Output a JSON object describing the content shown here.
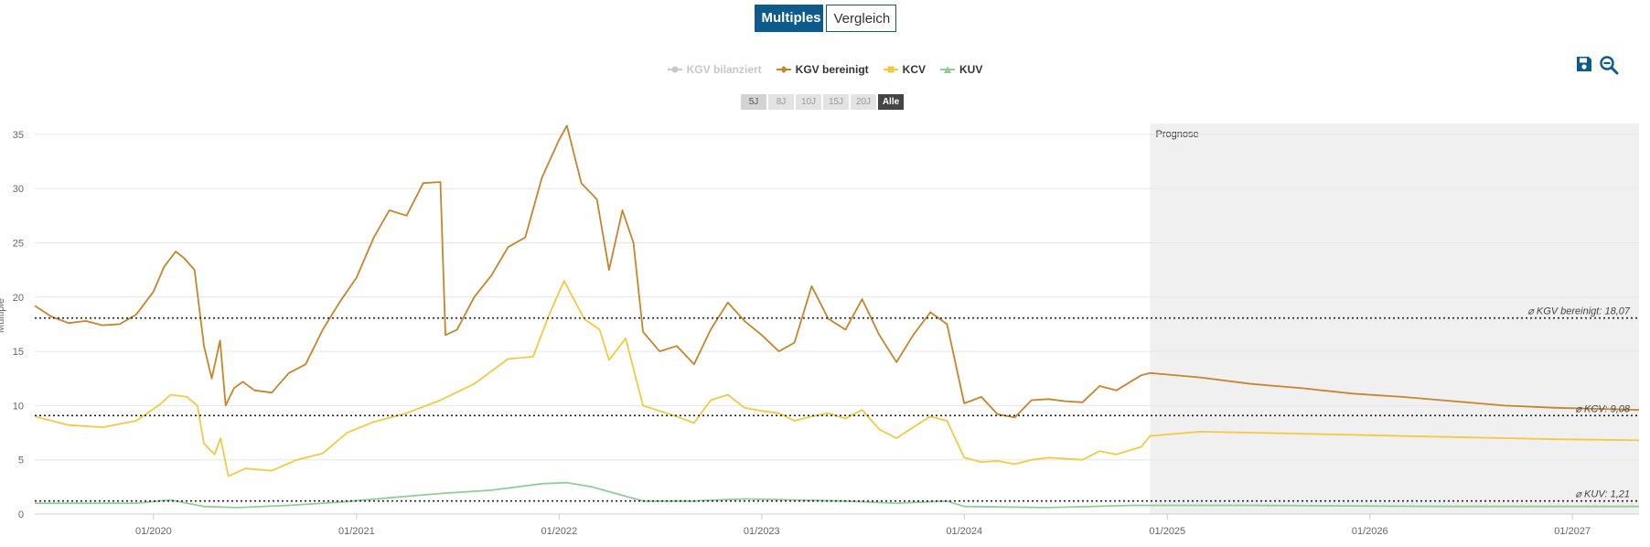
{
  "tabs": [
    {
      "label": "Multiples",
      "active": true
    },
    {
      "label": "Vergleich",
      "active": false
    }
  ],
  "legend": [
    {
      "label": "KGV bilanziert",
      "color": "#c8c8c8",
      "visible": false
    },
    {
      "label": "KGV bereinigt",
      "color": "#c8842a",
      "visible": true
    },
    {
      "label": "KCV",
      "color": "#f5c842",
      "visible": true
    },
    {
      "label": "KUV",
      "color": "#8fcf95",
      "visible": true
    }
  ],
  "ranges": [
    {
      "label": "5J"
    },
    {
      "label": "8J"
    },
    {
      "label": "10J"
    },
    {
      "label": "15J"
    },
    {
      "label": "20J"
    },
    {
      "label": "Alle",
      "selected": true
    }
  ],
  "tools": {
    "save_icon": "save-icon",
    "zoom_out_icon": "zoom-out-icon",
    "accent": "#0d5a8c"
  },
  "chart_data": {
    "type": "line",
    "ylabel": "Multiple",
    "ylim": [
      0,
      36
    ],
    "yticks": [
      0,
      5,
      10,
      15,
      20,
      25,
      30,
      35
    ],
    "xlim": [
      "2019-06-01",
      "2027-05-01"
    ],
    "xticks": [
      {
        "date": "2020-01-01",
        "label": "01/2020"
      },
      {
        "date": "2021-01-01",
        "label": "01/2021"
      },
      {
        "date": "2022-01-01",
        "label": "01/2022"
      },
      {
        "date": "2023-01-01",
        "label": "01/2023"
      },
      {
        "date": "2024-01-01",
        "label": "01/2024"
      },
      {
        "date": "2025-01-01",
        "label": "01/2025"
      },
      {
        "date": "2026-01-01",
        "label": "01/2026"
      },
      {
        "date": "2027-01-01",
        "label": "01/2027"
      }
    ],
    "forecast": {
      "label": "Prognose",
      "start": "2024-12-01"
    },
    "averages": [
      {
        "label": "⌀ KGV bereinigt: 18,07",
        "value": 18.07
      },
      {
        "label": "⌀ KCV: 9,08",
        "value": 9.08
      },
      {
        "label": "⌀ KUV: 1,21",
        "value": 1.21
      }
    ],
    "series": [
      {
        "name": "KGV bereinigt",
        "color": "#c8842a",
        "points": [
          [
            "2019-06-01",
            19.2
          ],
          [
            "2019-07-01",
            18.2
          ],
          [
            "2019-08-01",
            17.6
          ],
          [
            "2019-09-01",
            17.8
          ],
          [
            "2019-10-01",
            17.4
          ],
          [
            "2019-11-01",
            17.5
          ],
          [
            "2019-12-01",
            18.4
          ],
          [
            "2020-01-01",
            20.5
          ],
          [
            "2020-01-20",
            22.8
          ],
          [
            "2020-02-10",
            24.2
          ],
          [
            "2020-02-25",
            23.6
          ],
          [
            "2020-03-15",
            22.5
          ],
          [
            "2020-04-01",
            15.5
          ],
          [
            "2020-04-15",
            12.5
          ],
          [
            "2020-04-30",
            16.0
          ],
          [
            "2020-05-10",
            10.0
          ],
          [
            "2020-05-25",
            11.6
          ],
          [
            "2020-06-10",
            12.2
          ],
          [
            "2020-07-01",
            11.4
          ],
          [
            "2020-08-01",
            11.2
          ],
          [
            "2020-09-01",
            13.0
          ],
          [
            "2020-10-01",
            13.8
          ],
          [
            "2020-11-01",
            17.0
          ],
          [
            "2020-12-01",
            19.5
          ],
          [
            "2021-01-01",
            21.8
          ],
          [
            "2021-02-01",
            25.5
          ],
          [
            "2021-03-01",
            28.0
          ],
          [
            "2021-04-01",
            27.5
          ],
          [
            "2021-05-01",
            30.5
          ],
          [
            "2021-06-01",
            30.6
          ],
          [
            "2021-06-10",
            16.5
          ],
          [
            "2021-07-01",
            17.0
          ],
          [
            "2021-08-01",
            20.0
          ],
          [
            "2021-09-01",
            22.0
          ],
          [
            "2021-10-01",
            24.6
          ],
          [
            "2021-11-01",
            25.5
          ],
          [
            "2021-12-01",
            31.0
          ],
          [
            "2022-01-01",
            34.5
          ],
          [
            "2022-01-15",
            35.8
          ],
          [
            "2022-02-10",
            30.5
          ],
          [
            "2022-03-10",
            29.0
          ],
          [
            "2022-04-01",
            22.5
          ],
          [
            "2022-04-25",
            28.0
          ],
          [
            "2022-05-15",
            25.0
          ],
          [
            "2022-06-01",
            16.8
          ],
          [
            "2022-07-01",
            15.0
          ],
          [
            "2022-08-01",
            15.5
          ],
          [
            "2022-09-01",
            13.8
          ],
          [
            "2022-10-01",
            17.0
          ],
          [
            "2022-11-01",
            19.5
          ],
          [
            "2022-12-01",
            17.8
          ],
          [
            "2023-01-01",
            16.5
          ],
          [
            "2023-02-01",
            15.0
          ],
          [
            "2023-03-01",
            15.8
          ],
          [
            "2023-04-01",
            21.0
          ],
          [
            "2023-05-01",
            18.0
          ],
          [
            "2023-06-01",
            17.0
          ],
          [
            "2023-07-01",
            19.8
          ],
          [
            "2023-08-01",
            16.5
          ],
          [
            "2023-09-01",
            14.0
          ],
          [
            "2023-10-01",
            16.5
          ],
          [
            "2023-11-01",
            18.6
          ],
          [
            "2023-12-01",
            17.5
          ],
          [
            "2024-01-01",
            10.2
          ],
          [
            "2024-02-01",
            10.8
          ],
          [
            "2024-03-01",
            9.2
          ],
          [
            "2024-04-01",
            8.9
          ],
          [
            "2024-05-01",
            10.5
          ],
          [
            "2024-06-01",
            10.6
          ],
          [
            "2024-07-01",
            10.4
          ],
          [
            "2024-08-01",
            10.3
          ],
          [
            "2024-09-01",
            11.8
          ],
          [
            "2024-10-01",
            11.4
          ],
          [
            "2024-11-15",
            12.8
          ],
          [
            "2024-12-01",
            13.0
          ],
          [
            "2025-03-01",
            12.6
          ],
          [
            "2025-06-01",
            12.0
          ],
          [
            "2025-09-01",
            11.6
          ],
          [
            "2025-12-01",
            11.1
          ],
          [
            "2026-03-01",
            10.8
          ],
          [
            "2026-06-01",
            10.4
          ],
          [
            "2026-09-01",
            10.0
          ],
          [
            "2026-12-01",
            9.8
          ],
          [
            "2027-05-01",
            9.6
          ]
        ]
      },
      {
        "name": "KCV",
        "color": "#f5c842",
        "points": [
          [
            "2019-06-01",
            9.0
          ],
          [
            "2019-08-01",
            8.2
          ],
          [
            "2019-10-01",
            8.0
          ],
          [
            "2019-12-01",
            8.6
          ],
          [
            "2020-01-10",
            10.0
          ],
          [
            "2020-02-01",
            11.0
          ],
          [
            "2020-03-01",
            10.8
          ],
          [
            "2020-03-20",
            10.0
          ],
          [
            "2020-04-01",
            6.5
          ],
          [
            "2020-04-20",
            5.5
          ],
          [
            "2020-05-01",
            7.0
          ],
          [
            "2020-05-15",
            3.5
          ],
          [
            "2020-06-15",
            4.2
          ],
          [
            "2020-08-01",
            4.0
          ],
          [
            "2020-09-15",
            5.0
          ],
          [
            "2020-11-01",
            5.6
          ],
          [
            "2020-12-15",
            7.5
          ],
          [
            "2021-02-01",
            8.5
          ],
          [
            "2021-04-01",
            9.3
          ],
          [
            "2021-06-01",
            10.5
          ],
          [
            "2021-08-01",
            12.0
          ],
          [
            "2021-10-01",
            14.3
          ],
          [
            "2021-11-15",
            14.5
          ],
          [
            "2021-12-15",
            18.5
          ],
          [
            "2022-01-10",
            21.5
          ],
          [
            "2022-02-15",
            18.0
          ],
          [
            "2022-03-15",
            17.0
          ],
          [
            "2022-04-01",
            14.2
          ],
          [
            "2022-05-01",
            16.2
          ],
          [
            "2022-06-01",
            10.0
          ],
          [
            "2022-07-01",
            9.5
          ],
          [
            "2022-08-01",
            9.0
          ],
          [
            "2022-09-01",
            8.4
          ],
          [
            "2022-10-01",
            10.5
          ],
          [
            "2022-11-01",
            11.0
          ],
          [
            "2022-12-01",
            9.8
          ],
          [
            "2023-01-01",
            9.5
          ],
          [
            "2023-02-01",
            9.3
          ],
          [
            "2023-03-01",
            8.6
          ],
          [
            "2023-04-01",
            9.0
          ],
          [
            "2023-05-01",
            9.3
          ],
          [
            "2023-06-01",
            8.8
          ],
          [
            "2023-07-01",
            9.6
          ],
          [
            "2023-08-01",
            7.8
          ],
          [
            "2023-09-01",
            7.0
          ],
          [
            "2023-10-01",
            8.0
          ],
          [
            "2023-11-01",
            9.0
          ],
          [
            "2023-12-01",
            8.6
          ],
          [
            "2024-01-01",
            5.2
          ],
          [
            "2024-02-01",
            4.8
          ],
          [
            "2024-03-01",
            4.9
          ],
          [
            "2024-04-01",
            4.6
          ],
          [
            "2024-05-01",
            5.0
          ],
          [
            "2024-06-01",
            5.2
          ],
          [
            "2024-08-01",
            5.0
          ],
          [
            "2024-09-01",
            5.8
          ],
          [
            "2024-10-01",
            5.5
          ],
          [
            "2024-11-15",
            6.2
          ],
          [
            "2024-12-01",
            7.2
          ],
          [
            "2025-03-01",
            7.6
          ],
          [
            "2025-06-01",
            7.5
          ],
          [
            "2025-09-01",
            7.4
          ],
          [
            "2025-12-01",
            7.3
          ],
          [
            "2026-03-01",
            7.2
          ],
          [
            "2026-06-01",
            7.1
          ],
          [
            "2026-09-01",
            7.0
          ],
          [
            "2026-12-01",
            6.9
          ],
          [
            "2027-05-01",
            6.8
          ]
        ]
      },
      {
        "name": "KUV",
        "color": "#8fcf95",
        "points": [
          [
            "2019-06-01",
            1.0
          ],
          [
            "2019-12-01",
            1.0
          ],
          [
            "2020-02-01",
            1.3
          ],
          [
            "2020-04-01",
            0.7
          ],
          [
            "2020-06-01",
            0.6
          ],
          [
            "2020-09-01",
            0.8
          ],
          [
            "2020-12-01",
            1.1
          ],
          [
            "2021-03-01",
            1.5
          ],
          [
            "2021-06-01",
            1.9
          ],
          [
            "2021-09-01",
            2.2
          ],
          [
            "2021-12-01",
            2.8
          ],
          [
            "2022-01-15",
            2.9
          ],
          [
            "2022-03-01",
            2.5
          ],
          [
            "2022-06-01",
            1.2
          ],
          [
            "2022-09-01",
            1.2
          ],
          [
            "2022-12-01",
            1.4
          ],
          [
            "2023-03-01",
            1.3
          ],
          [
            "2023-06-01",
            1.2
          ],
          [
            "2023-09-01",
            1.0
          ],
          [
            "2023-12-01",
            1.2
          ],
          [
            "2024-01-01",
            0.7
          ],
          [
            "2024-06-01",
            0.6
          ],
          [
            "2024-11-01",
            0.8
          ],
          [
            "2025-06-01",
            0.8
          ],
          [
            "2026-06-01",
            0.7
          ],
          [
            "2027-05-01",
            0.7
          ]
        ]
      }
    ]
  }
}
